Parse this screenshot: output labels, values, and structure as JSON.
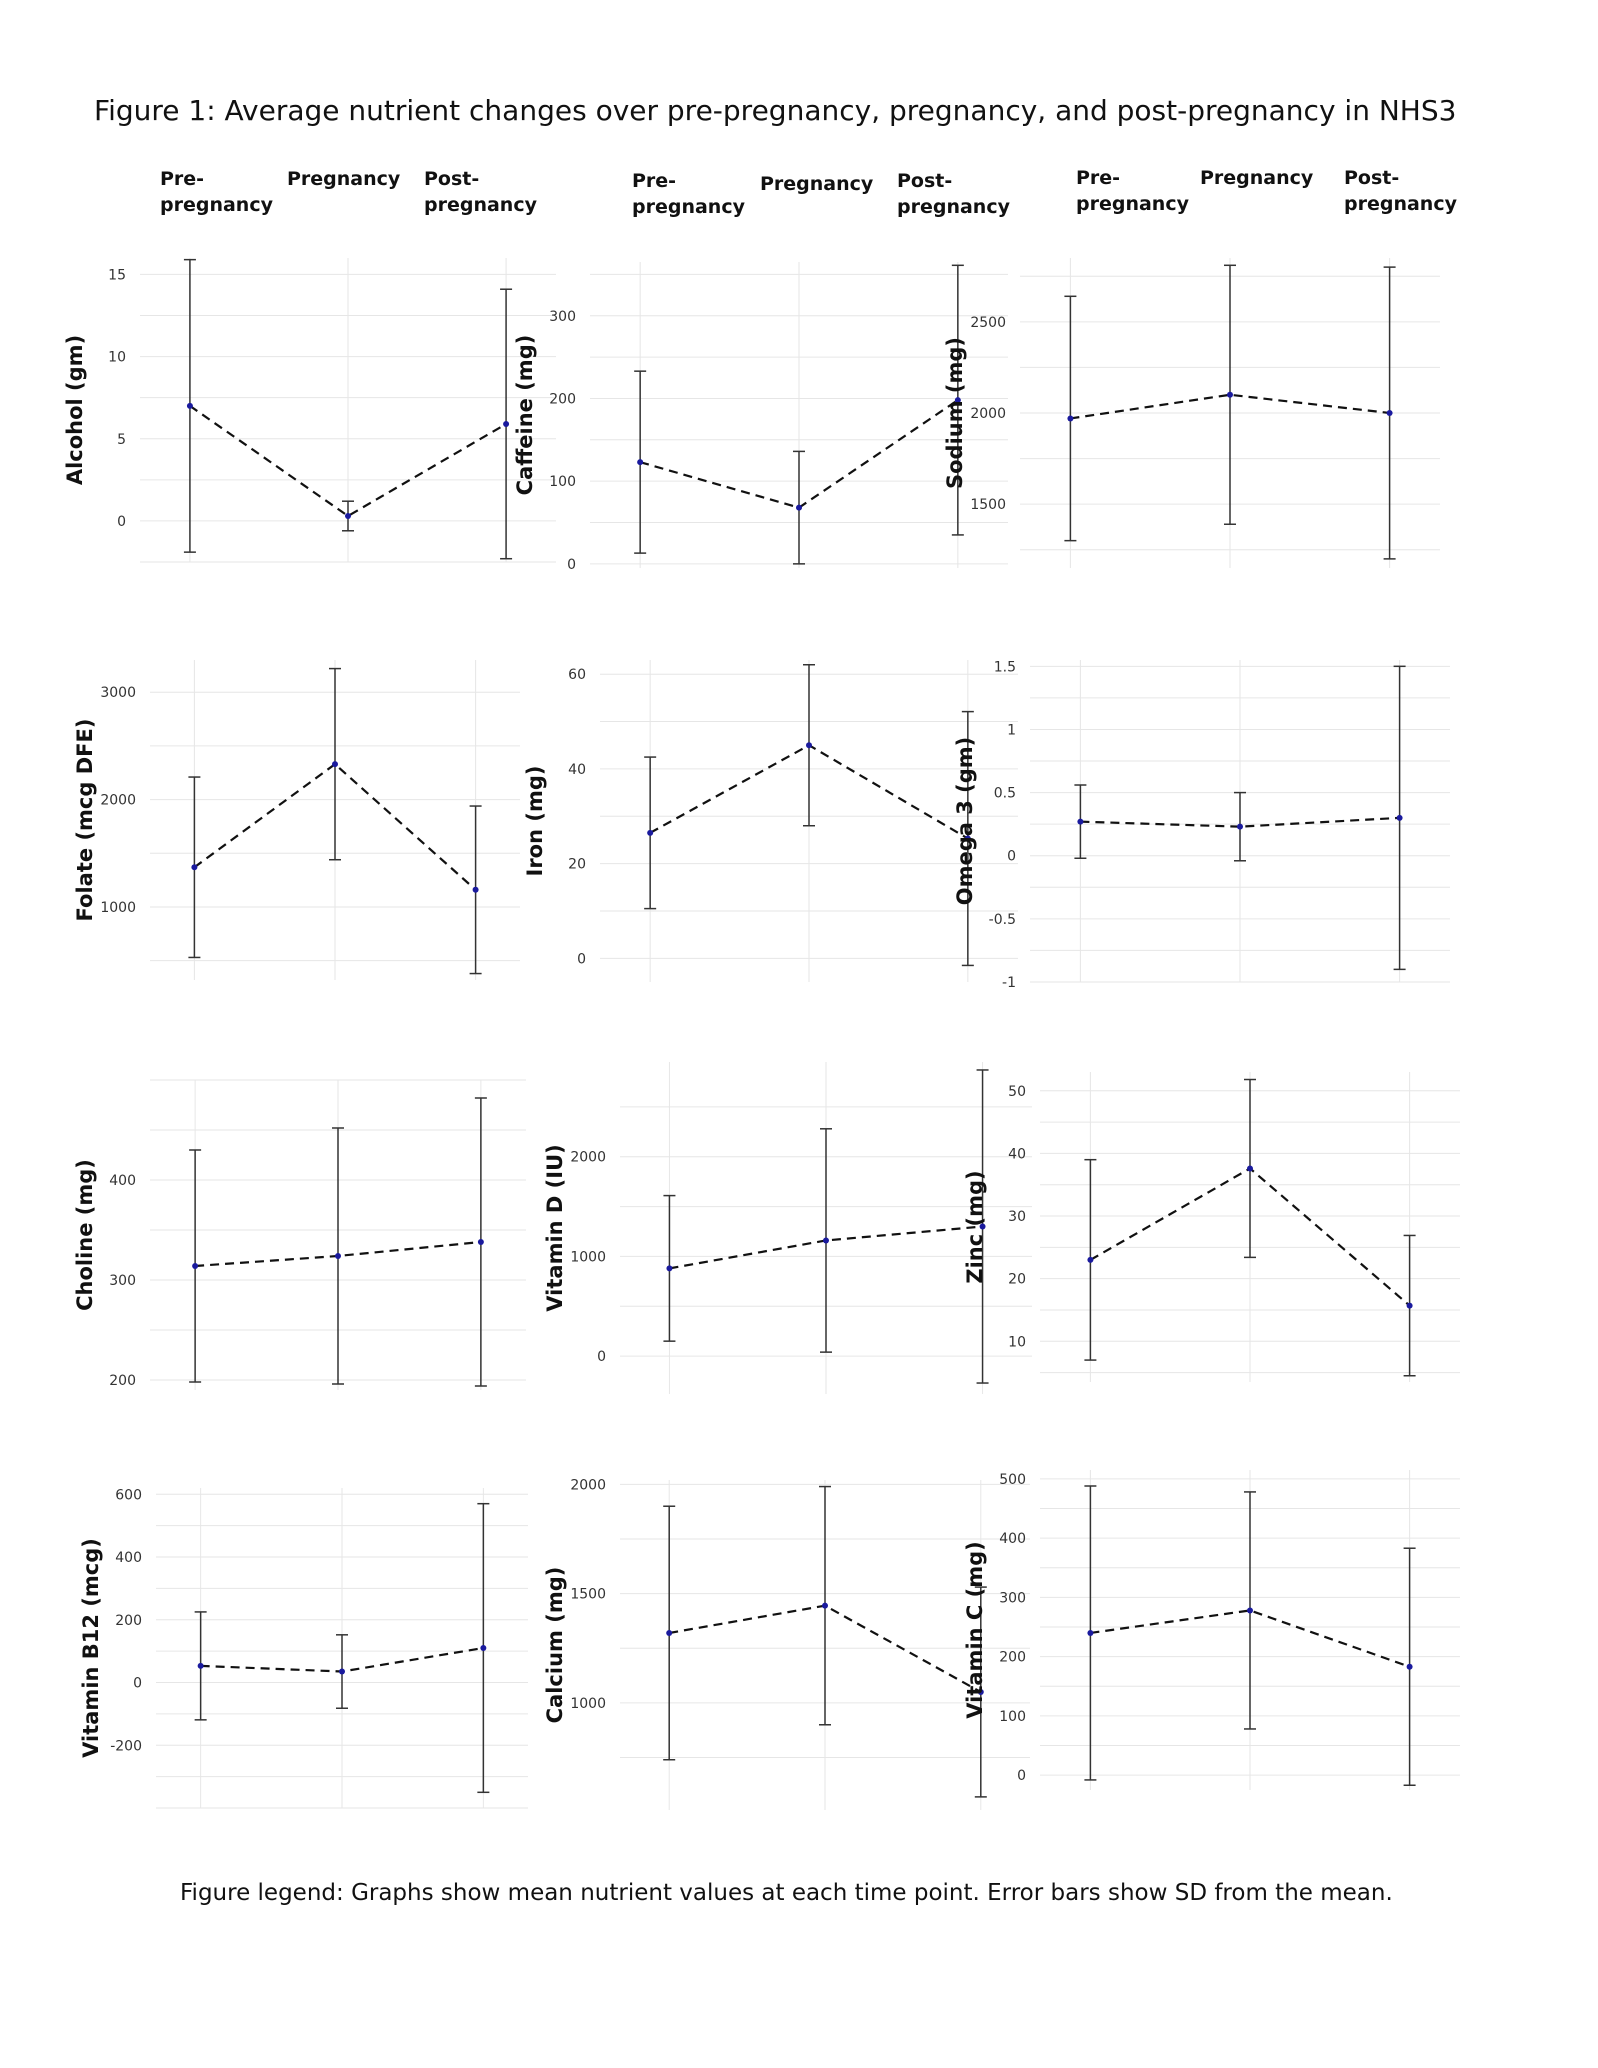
{
  "figure": {
    "title": "Figure 1: Average nutrient changes over pre-pregnancy, pregnancy, and post-pregnancy in NHS3",
    "legend": "Figure legend: Graphs show mean nutrient values at each time point. Error bars show SD from the mean.",
    "column_headers": [
      "Pre-\npregnancy",
      "Pregnancy",
      "Post-\npregnancy"
    ],
    "colors": {
      "point": "#1a1a9e",
      "line": "#111111",
      "errorbar": "#333333",
      "grid": "#e6e6e6"
    }
  },
  "chart_data": [
    {
      "type": "line",
      "ylabel": "Alcohol (gm)",
      "categories": [
        "Pre-pregnancy",
        "Pregnancy",
        "Post-pregnancy"
      ],
      "mean": [
        7.0,
        0.3,
        5.9
      ],
      "sd": [
        8.9,
        0.9,
        8.2
      ],
      "ylim": [
        -2.5,
        16
      ],
      "yticks": [
        0,
        5,
        10,
        15
      ]
    },
    {
      "type": "line",
      "ylabel": "Caffeine (mg)",
      "categories": [
        "Pre-pregnancy",
        "Pregnancy",
        "Post-pregnancy"
      ],
      "mean": [
        123,
        68,
        198
      ],
      "sd": [
        110,
        68,
        163
      ],
      "ylim": [
        -5,
        365
      ],
      "yticks": [
        0,
        100,
        200,
        300
      ]
    },
    {
      "type": "line",
      "ylabel": "Sodium (mg)",
      "categories": [
        "Pre-pregnancy",
        "Pregnancy",
        "Post-pregnancy"
      ],
      "mean": [
        1970,
        2100,
        2000
      ],
      "sd": [
        670,
        710,
        800
      ],
      "ylim": [
        1150,
        2850
      ],
      "yticks": [
        1500,
        2000,
        2500
      ]
    },
    {
      "type": "line",
      "ylabel": "Folate (mcg DFE)",
      "categories": [
        "Pre-pregnancy",
        "Pregnancy",
        "Post-pregnancy"
      ],
      "mean": [
        1370,
        2330,
        1160
      ],
      "sd": [
        840,
        890,
        780
      ],
      "ylim": [
        320,
        3300
      ],
      "yticks": [
        1000,
        2000,
        3000
      ]
    },
    {
      "type": "line",
      "ylabel": "Iron (mg)",
      "categories": [
        "Pre-pregnancy",
        "Pregnancy",
        "Post-pregnancy"
      ],
      "mean": [
        26.5,
        45,
        25.3
      ],
      "sd": [
        16,
        17,
        26.8
      ],
      "ylim": [
        -5,
        63
      ],
      "yticks": [
        0,
        20,
        40,
        60
      ]
    },
    {
      "type": "line",
      "ylabel": "Omega 3 (gm)",
      "categories": [
        "Pre-pregnancy",
        "Pregnancy",
        "Post-pregnancy"
      ],
      "mean": [
        0.27,
        0.23,
        0.3
      ],
      "sd": [
        0.29,
        0.27,
        1.2
      ],
      "ylim": [
        -1.0,
        1.55
      ],
      "yticks": [
        -1.0,
        -0.5,
        0.0,
        0.5,
        1.0,
        1.5
      ]
    },
    {
      "type": "line",
      "ylabel": "Choline (mg)",
      "categories": [
        "Pre-pregnancy",
        "Pregnancy",
        "Post-pregnancy"
      ],
      "mean": [
        314,
        324,
        338
      ],
      "sd": [
        116,
        128,
        144
      ],
      "ylim": [
        190,
        500
      ],
      "yticks": [
        200,
        300,
        400
      ]
    },
    {
      "type": "line",
      "ylabel": "Vitamin D (IU)",
      "categories": [
        "Pre-pregnancy",
        "Pregnancy",
        "Post-pregnancy"
      ],
      "mean": [
        880,
        1160,
        1300
      ],
      "sd": [
        730,
        1120,
        1570
      ],
      "ylim": [
        -380,
        2950
      ],
      "yticks": [
        0,
        1000,
        2000
      ]
    },
    {
      "type": "line",
      "ylabel": "Zinc (mg)",
      "categories": [
        "Pre-pregnancy",
        "Pregnancy",
        "Post-pregnancy"
      ],
      "mean": [
        23,
        37.6,
        15.7
      ],
      "sd": [
        16,
        14.2,
        11.2
      ],
      "ylim": [
        3.5,
        53
      ],
      "yticks": [
        10,
        20,
        30,
        40,
        50
      ]
    },
    {
      "type": "line",
      "ylabel": "Vitamin B12 (mcg)",
      "categories": [
        "Pre-pregnancy",
        "Pregnancy",
        "Post-pregnancy"
      ],
      "mean": [
        53,
        35,
        110
      ],
      "sd": [
        172,
        117,
        460
      ],
      "ylim": [
        -400,
        620
      ],
      "yticks": [
        -200,
        0,
        200,
        400,
        600
      ]
    },
    {
      "type": "line",
      "ylabel": "Calcium (mg)",
      "categories": [
        "Pre-pregnancy",
        "Pregnancy",
        "Post-pregnancy"
      ],
      "mean": [
        1320,
        1445,
        1050
      ],
      "sd": [
        580,
        545,
        480
      ],
      "ylim": [
        510,
        2020
      ],
      "yticks": [
        1000,
        1500,
        2000
      ]
    },
    {
      "type": "line",
      "ylabel": "Vitamin C (mg)",
      "categories": [
        "Pre-pregnancy",
        "Pregnancy",
        "Post-pregnancy"
      ],
      "mean": [
        240,
        278,
        183
      ],
      "sd": [
        248,
        200,
        200
      ],
      "ylim": [
        -25,
        515
      ],
      "yticks": [
        0,
        100,
        200,
        300,
        400,
        500
      ]
    }
  ]
}
